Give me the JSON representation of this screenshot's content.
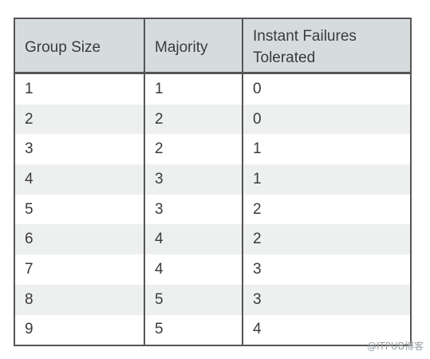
{
  "table": {
    "headers": [
      "Group Size",
      "Majority",
      "Instant Failures Tolerated"
    ],
    "header_lines": {
      "col3_line1": "Instant Failures",
      "col3_line2": "Tolerated"
    },
    "rows": [
      [
        "1",
        "1",
        "0"
      ],
      [
        "2",
        "2",
        "0"
      ],
      [
        "3",
        "2",
        "1"
      ],
      [
        "4",
        "3",
        "1"
      ],
      [
        "5",
        "3",
        "2"
      ],
      [
        "6",
        "4",
        "2"
      ],
      [
        "7",
        "4",
        "3"
      ],
      [
        "8",
        "5",
        "3"
      ],
      [
        "9",
        "5",
        "4"
      ]
    ]
  },
  "watermark": "@ITPUB博客",
  "colors": {
    "header_bg": "#d6dcde",
    "stripe_bg": "#eef0f0",
    "border": "#555555",
    "text": "#3a3a3a"
  }
}
